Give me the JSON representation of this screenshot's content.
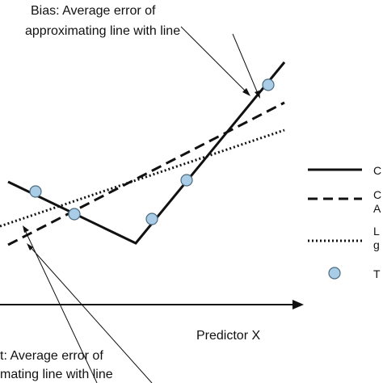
{
  "annotations": {
    "bias_top_line1": "Bias: Average error of",
    "bias_top_line2": "approximating line  with line",
    "bias_bottom_line1": "t: Average error of",
    "bias_bottom_line2": "mating line  with line"
  },
  "axis": {
    "x_label": "Predictor X"
  },
  "legend": {
    "items": [
      {
        "style": "solid",
        "label": "C"
      },
      {
        "style": "dashed",
        "label_line1": "C",
        "label_line2": "A"
      },
      {
        "style": "dotted",
        "label_line1": "L",
        "label_line2": "g"
      },
      {
        "style": "marker",
        "label": "T"
      }
    ]
  },
  "colors": {
    "line": "#111111",
    "marker_fill": "#a9cde6",
    "marker_stroke": "#4d6b80"
  }
}
